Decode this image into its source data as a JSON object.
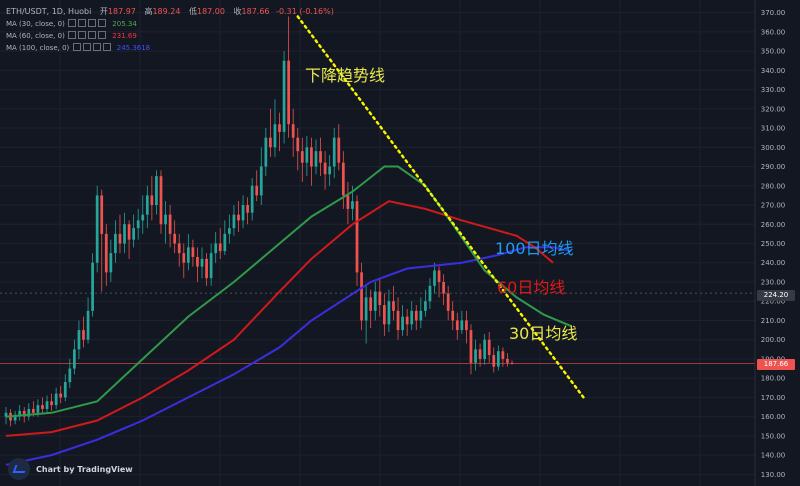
{
  "header": {
    "symbol": "ETH/USDT, 1D, Huobi",
    "open_label": "开",
    "open": "187.97",
    "high_label": "高",
    "high": "189.24",
    "low_label": "低",
    "low": "187.00",
    "close_label": "收",
    "close": "187.66",
    "change": "-0.31 (-0.16%)"
  },
  "indicators": [
    {
      "label": "MA (30, close, 0)",
      "value": "205.34",
      "color": "#4caf50"
    },
    {
      "label": "MA (60, close, 0)",
      "value": "231.69",
      "color": "#f23645"
    },
    {
      "label": "MA (100, close, 0)",
      "value": "245.3618",
      "color": "#3f51ff"
    }
  ],
  "annotations": {
    "downtrend": "下降趋势线",
    "ma100": "100日均线",
    "ma60": "60日均线",
    "ma30": "30日均线"
  },
  "price_tags": {
    "crosshair": "224.20",
    "last": "187.66"
  },
  "brand": "Chart by TradingView",
  "colors": {
    "up": "#26a69a",
    "down": "#ef5350",
    "ma30": "#2e9a4a",
    "ma60": "#d01a1a",
    "ma100": "#3a2fe0",
    "trendline": "#f5f500",
    "annot_blue": "#1e9cf0",
    "annot_red": "#e01919",
    "annot_yellow": "#e8e84a"
  },
  "chart_data": {
    "type": "candlestick",
    "ylim": [
      125,
      375
    ],
    "y_ticks": [
      130,
      140,
      150,
      160,
      170,
      180,
      190,
      200,
      210,
      220,
      230,
      240,
      250,
      260,
      270,
      280,
      290,
      300,
      310,
      320,
      330,
      340,
      350,
      360,
      370
    ],
    "candles": [
      {
        "o": 160,
        "c": 162,
        "h": 165,
        "l": 156
      },
      {
        "o": 162,
        "c": 158,
        "h": 164,
        "l": 155
      },
      {
        "o": 158,
        "c": 161,
        "h": 163,
        "l": 156
      },
      {
        "o": 161,
        "c": 163,
        "h": 166,
        "l": 158
      },
      {
        "o": 163,
        "c": 160,
        "h": 165,
        "l": 157
      },
      {
        "o": 160,
        "c": 164,
        "h": 167,
        "l": 158
      },
      {
        "o": 164,
        "c": 162,
        "h": 168,
        "l": 160
      },
      {
        "o": 162,
        "c": 166,
        "h": 169,
        "l": 160
      },
      {
        "o": 166,
        "c": 164,
        "h": 170,
        "l": 162
      },
      {
        "o": 164,
        "c": 168,
        "h": 171,
        "l": 162
      },
      {
        "o": 168,
        "c": 166,
        "h": 172,
        "l": 163
      },
      {
        "o": 166,
        "c": 172,
        "h": 175,
        "l": 164
      },
      {
        "o": 172,
        "c": 170,
        "h": 176,
        "l": 167
      },
      {
        "o": 170,
        "c": 178,
        "h": 182,
        "l": 168
      },
      {
        "o": 178,
        "c": 185,
        "h": 190,
        "l": 175
      },
      {
        "o": 185,
        "c": 195,
        "h": 200,
        "l": 182
      },
      {
        "o": 195,
        "c": 205,
        "h": 210,
        "l": 190
      },
      {
        "o": 205,
        "c": 200,
        "h": 212,
        "l": 196
      },
      {
        "o": 200,
        "c": 215,
        "h": 222,
        "l": 198
      },
      {
        "o": 215,
        "c": 240,
        "h": 245,
        "l": 212
      },
      {
        "o": 240,
        "c": 275,
        "h": 280,
        "l": 235
      },
      {
        "o": 275,
        "c": 255,
        "h": 278,
        "l": 225
      },
      {
        "o": 255,
        "c": 235,
        "h": 260,
        "l": 228
      },
      {
        "o": 235,
        "c": 245,
        "h": 252,
        "l": 230
      },
      {
        "o": 245,
        "c": 255,
        "h": 262,
        "l": 240
      },
      {
        "o": 255,
        "c": 250,
        "h": 265,
        "l": 245
      },
      {
        "o": 250,
        "c": 260,
        "h": 266,
        "l": 245
      },
      {
        "o": 260,
        "c": 252,
        "h": 262,
        "l": 242
      },
      {
        "o": 252,
        "c": 258,
        "h": 265,
        "l": 248
      },
      {
        "o": 258,
        "c": 262,
        "h": 268,
        "l": 252
      },
      {
        "o": 262,
        "c": 265,
        "h": 275,
        "l": 255
      },
      {
        "o": 265,
        "c": 275,
        "h": 280,
        "l": 258
      },
      {
        "o": 275,
        "c": 270,
        "h": 285,
        "l": 262
      },
      {
        "o": 270,
        "c": 285,
        "h": 288,
        "l": 265
      },
      {
        "o": 285,
        "c": 260,
        "h": 288,
        "l": 255
      },
      {
        "o": 260,
        "c": 265,
        "h": 272,
        "l": 250
      },
      {
        "o": 265,
        "c": 255,
        "h": 270,
        "l": 248
      },
      {
        "o": 255,
        "c": 250,
        "h": 262,
        "l": 245
      },
      {
        "o": 250,
        "c": 245,
        "h": 255,
        "l": 238
      },
      {
        "o": 245,
        "c": 240,
        "h": 250,
        "l": 232
      },
      {
        "o": 240,
        "c": 248,
        "h": 255,
        "l": 236
      },
      {
        "o": 248,
        "c": 243,
        "h": 252,
        "l": 238
      },
      {
        "o": 243,
        "c": 238,
        "h": 248,
        "l": 230
      },
      {
        "o": 238,
        "c": 242,
        "h": 248,
        "l": 232
      },
      {
        "o": 242,
        "c": 232,
        "h": 245,
        "l": 228
      },
      {
        "o": 232,
        "c": 245,
        "h": 250,
        "l": 228
      },
      {
        "o": 245,
        "c": 250,
        "h": 256,
        "l": 240
      },
      {
        "o": 250,
        "c": 246,
        "h": 258,
        "l": 242
      },
      {
        "o": 246,
        "c": 255,
        "h": 262,
        "l": 244
      },
      {
        "o": 255,
        "c": 258,
        "h": 265,
        "l": 250
      },
      {
        "o": 258,
        "c": 265,
        "h": 270,
        "l": 254
      },
      {
        "o": 265,
        "c": 262,
        "h": 272,
        "l": 256
      },
      {
        "o": 262,
        "c": 270,
        "h": 275,
        "l": 258
      },
      {
        "o": 270,
        "c": 266,
        "h": 274,
        "l": 260
      },
      {
        "o": 266,
        "c": 280,
        "h": 284,
        "l": 262
      },
      {
        "o": 280,
        "c": 275,
        "h": 288,
        "l": 272
      },
      {
        "o": 275,
        "c": 290,
        "h": 300,
        "l": 270
      },
      {
        "o": 290,
        "c": 305,
        "h": 310,
        "l": 285
      },
      {
        "o": 305,
        "c": 300,
        "h": 320,
        "l": 295
      },
      {
        "o": 300,
        "c": 312,
        "h": 325,
        "l": 295
      },
      {
        "o": 312,
        "c": 308,
        "h": 318,
        "l": 298
      },
      {
        "o": 308,
        "c": 345,
        "h": 350,
        "l": 302
      },
      {
        "o": 345,
        "c": 312,
        "h": 368,
        "l": 305
      },
      {
        "o": 312,
        "c": 305,
        "h": 320,
        "l": 295
      },
      {
        "o": 305,
        "c": 298,
        "h": 310,
        "l": 288
      },
      {
        "o": 298,
        "c": 292,
        "h": 305,
        "l": 282
      },
      {
        "o": 292,
        "c": 300,
        "h": 306,
        "l": 285
      },
      {
        "o": 300,
        "c": 290,
        "h": 305,
        "l": 280
      },
      {
        "o": 290,
        "c": 298,
        "h": 304,
        "l": 286
      },
      {
        "o": 298,
        "c": 292,
        "h": 305,
        "l": 285
      },
      {
        "o": 292,
        "c": 286,
        "h": 298,
        "l": 278
      },
      {
        "o": 286,
        "c": 290,
        "h": 296,
        "l": 280
      },
      {
        "o": 290,
        "c": 305,
        "h": 310,
        "l": 284
      },
      {
        "o": 305,
        "c": 292,
        "h": 312,
        "l": 288
      },
      {
        "o": 292,
        "c": 275,
        "h": 298,
        "l": 268
      },
      {
        "o": 275,
        "c": 268,
        "h": 282,
        "l": 260
      },
      {
        "o": 268,
        "c": 272,
        "h": 280,
        "l": 262
      },
      {
        "o": 272,
        "c": 235,
        "h": 275,
        "l": 228
      },
      {
        "o": 235,
        "c": 210,
        "h": 240,
        "l": 205
      },
      {
        "o": 210,
        "c": 222,
        "h": 228,
        "l": 198
      },
      {
        "o": 222,
        "c": 215,
        "h": 226,
        "l": 206
      },
      {
        "o": 215,
        "c": 225,
        "h": 230,
        "l": 210
      },
      {
        "o": 225,
        "c": 218,
        "h": 232,
        "l": 212
      },
      {
        "o": 218,
        "c": 208,
        "h": 224,
        "l": 202
      },
      {
        "o": 208,
        "c": 220,
        "h": 226,
        "l": 204
      },
      {
        "o": 220,
        "c": 215,
        "h": 228,
        "l": 210
      },
      {
        "o": 215,
        "c": 205,
        "h": 222,
        "l": 200
      },
      {
        "o": 205,
        "c": 212,
        "h": 218,
        "l": 202
      },
      {
        "o": 212,
        "c": 208,
        "h": 216,
        "l": 202
      },
      {
        "o": 208,
        "c": 215,
        "h": 220,
        "l": 205
      },
      {
        "o": 215,
        "c": 210,
        "h": 218,
        "l": 205
      },
      {
        "o": 210,
        "c": 215,
        "h": 222,
        "l": 206
      },
      {
        "o": 215,
        "c": 220,
        "h": 226,
        "l": 212
      },
      {
        "o": 220,
        "c": 228,
        "h": 232,
        "l": 216
      },
      {
        "o": 228,
        "c": 236,
        "h": 240,
        "l": 224
      },
      {
        "o": 236,
        "c": 230,
        "h": 238,
        "l": 222
      },
      {
        "o": 230,
        "c": 224,
        "h": 234,
        "l": 218
      },
      {
        "o": 224,
        "c": 215,
        "h": 228,
        "l": 210
      },
      {
        "o": 215,
        "c": 210,
        "h": 220,
        "l": 205
      },
      {
        "o": 210,
        "c": 205,
        "h": 214,
        "l": 200
      },
      {
        "o": 205,
        "c": 210,
        "h": 215,
        "l": 203
      },
      {
        "o": 210,
        "c": 205,
        "h": 215,
        "l": 198
      },
      {
        "o": 205,
        "c": 188,
        "h": 208,
        "l": 182
      },
      {
        "o": 188,
        "c": 195,
        "h": 200,
        "l": 184
      },
      {
        "o": 195,
        "c": 190,
        "h": 198,
        "l": 186
      },
      {
        "o": 190,
        "c": 200,
        "h": 203,
        "l": 187
      },
      {
        "o": 200,
        "c": 192,
        "h": 204,
        "l": 188
      },
      {
        "o": 192,
        "c": 186,
        "h": 196,
        "l": 183
      },
      {
        "o": 186,
        "c": 194,
        "h": 197,
        "l": 184
      },
      {
        "o": 194,
        "c": 190,
        "h": 196,
        "l": 186
      },
      {
        "o": 190,
        "c": 188,
        "h": 193,
        "l": 186
      },
      {
        "o": 187.97,
        "c": 187.66,
        "h": 189.24,
        "l": 187.0
      }
    ],
    "ma30": [
      [
        0,
        160
      ],
      [
        10,
        162
      ],
      [
        20,
        168
      ],
      [
        30,
        190
      ],
      [
        40,
        212
      ],
      [
        50,
        230
      ],
      [
        60,
        250
      ],
      [
        67,
        264
      ],
      [
        76,
        277
      ],
      [
        83,
        290
      ],
      [
        86,
        290
      ],
      [
        92,
        280
      ],
      [
        98,
        260
      ],
      [
        105,
        236
      ],
      [
        112,
        222
      ],
      [
        118,
        213
      ],
      [
        124,
        207
      ]
    ],
    "ma60": [
      [
        0,
        150
      ],
      [
        10,
        152
      ],
      [
        20,
        158
      ],
      [
        30,
        170
      ],
      [
        40,
        184
      ],
      [
        50,
        200
      ],
      [
        60,
        225
      ],
      [
        67,
        242
      ],
      [
        76,
        260
      ],
      [
        84,
        272
      ],
      [
        92,
        268
      ],
      [
        100,
        262
      ],
      [
        106,
        258
      ],
      [
        112,
        254
      ],
      [
        116,
        248
      ],
      [
        120,
        240
      ]
    ],
    "ma100": [
      [
        0,
        135
      ],
      [
        10,
        140
      ],
      [
        20,
        148
      ],
      [
        30,
        158
      ],
      [
        40,
        170
      ],
      [
        50,
        182
      ],
      [
        60,
        196
      ],
      [
        67,
        210
      ],
      [
        80,
        230
      ],
      [
        88,
        237
      ],
      [
        100,
        240
      ],
      [
        108,
        244
      ],
      [
        114,
        248
      ],
      [
        120,
        248
      ],
      [
        124,
        246
      ]
    ],
    "trendline": {
      "from": [
        64,
        368
      ],
      "to": [
        127,
        169
      ]
    }
  }
}
